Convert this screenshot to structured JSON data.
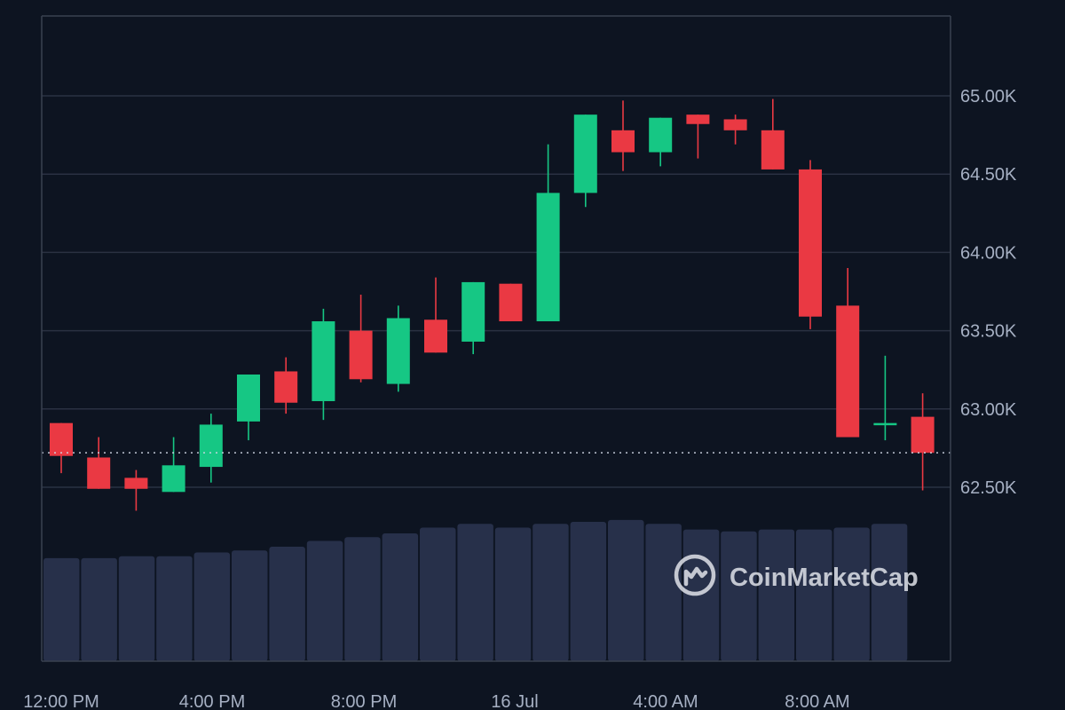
{
  "watermark": {
    "brand": "CoinMarketCap",
    "logo_icon": "coinmarketcap-logo-icon"
  },
  "colors": {
    "background": "#0d1421",
    "grid": "#2a3142",
    "axis": "#394150",
    "text": "#a6b0c3",
    "up": "#16c784",
    "down": "#ea3943",
    "volume": "#27304a",
    "price_line": "#cfd6e4"
  },
  "chart_data": {
    "type": "candlestick",
    "y_ticks": [
      {
        "value": 65000,
        "label": "65.00K"
      },
      {
        "value": 64500,
        "label": "64.50K"
      },
      {
        "value": 64000,
        "label": "64.00K"
      },
      {
        "value": 63500,
        "label": "63.50K"
      },
      {
        "value": 63000,
        "label": "63.00K"
      },
      {
        "value": 62500,
        "label": "62.50K"
      }
    ],
    "x_ticks": [
      "12:00 PM",
      "4:00 PM",
      "8:00 PM",
      "16 Jul",
      "4:00 AM",
      "8:00 AM"
    ],
    "ylim": [
      62000,
      65500
    ],
    "current_price": 62720,
    "candles": [
      {
        "open": 62910,
        "high": 62910,
        "low": 62590,
        "close": 62700
      },
      {
        "open": 62690,
        "high": 62820,
        "low": 62490,
        "close": 62490
      },
      {
        "open": 62560,
        "high": 62610,
        "low": 62350,
        "close": 62490
      },
      {
        "open": 62470,
        "high": 62820,
        "low": 62470,
        "close": 62640
      },
      {
        "open": 62630,
        "high": 62970,
        "low": 62530,
        "close": 62900
      },
      {
        "open": 62920,
        "high": 63220,
        "low": 62800,
        "close": 63220
      },
      {
        "open": 63240,
        "high": 63330,
        "low": 62970,
        "close": 63040
      },
      {
        "open": 63050,
        "high": 63640,
        "low": 62930,
        "close": 63560
      },
      {
        "open": 63500,
        "high": 63730,
        "low": 63170,
        "close": 63190
      },
      {
        "open": 63160,
        "high": 63660,
        "low": 63110,
        "close": 63580
      },
      {
        "open": 63570,
        "high": 63840,
        "low": 63360,
        "close": 63360
      },
      {
        "open": 63430,
        "high": 63810,
        "low": 63350,
        "close": 63810
      },
      {
        "open": 63800,
        "high": 63800,
        "low": 63560,
        "close": 63560
      },
      {
        "open": 63560,
        "high": 64690,
        "low": 63560,
        "close": 64380
      },
      {
        "open": 64380,
        "high": 64880,
        "low": 64290,
        "close": 64880
      },
      {
        "open": 64780,
        "high": 64970,
        "low": 64520,
        "close": 64640
      },
      {
        "open": 64640,
        "high": 64860,
        "low": 64550,
        "close": 64860
      },
      {
        "open": 64880,
        "high": 64880,
        "low": 64600,
        "close": 64820
      },
      {
        "open": 64850,
        "high": 64880,
        "low": 64690,
        "close": 64780
      },
      {
        "open": 64780,
        "high": 64980,
        "low": 64530,
        "close": 64530
      },
      {
        "open": 64530,
        "high": 64590,
        "low": 63510,
        "close": 63590
      },
      {
        "open": 63660,
        "high": 63900,
        "low": 62820,
        "close": 62820
      },
      {
        "open": 62900,
        "high": 63340,
        "low": 62800,
        "close": 62910
      },
      {
        "open": 62950,
        "high": 63100,
        "low": 62480,
        "close": 62720
      }
    ],
    "volume_levels": [
      0.54,
      0.54,
      0.55,
      0.55,
      0.57,
      0.58,
      0.6,
      0.63,
      0.65,
      0.67,
      0.7,
      0.72,
      0.7,
      0.72,
      0.73,
      0.74,
      0.72,
      0.69,
      0.68,
      0.69,
      0.69,
      0.7,
      0.72
    ]
  }
}
